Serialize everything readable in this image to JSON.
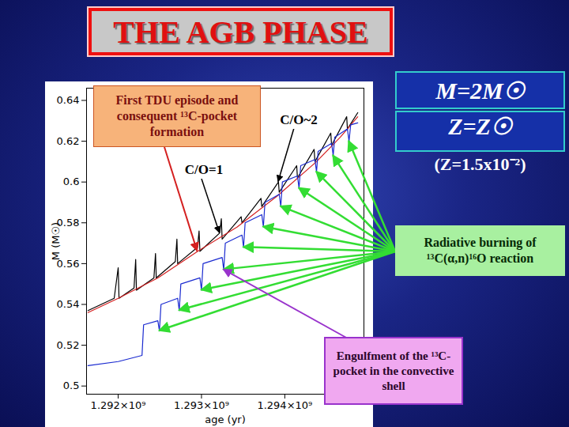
{
  "chart_data": {
    "type": "line",
    "title": "THE AGB PHASE",
    "xlabel": "age (yr)",
    "ylabel": "M (M☉)",
    "xlim": [
      1291620000,
      1294950000
    ],
    "ylim": [
      0.496,
      0.646
    ],
    "xticks": [
      {
        "value": 1292000000,
        "label": "1.292×10⁹"
      },
      {
        "value": 1293000000,
        "label": "1.293×10⁹"
      },
      {
        "value": 1294000000,
        "label": "1.294×10⁹"
      }
    ],
    "yticks": [
      0.5,
      0.52,
      0.54,
      0.56,
      0.58,
      0.6,
      0.62,
      0.64
    ],
    "grid": false,
    "annotations": [
      "First TDU episode and consequent ¹³C-pocket formation",
      "C/O=1",
      "C/O~2",
      "M=2M☉",
      "Z=Z☉",
      "(Z=1.5x10⁻²)",
      "Radiative burning of ¹³C(α,n)¹⁶O reaction",
      "Engulfment of the ¹³C-pocket in the convective shell"
    ],
    "series": [
      {
        "color": "#000000",
        "x": [
          1291638000,
          1291952000,
          1292000000,
          1292010000,
          1292190000,
          1292210000,
          1292219000,
          1292429000,
          1292448000,
          1292457000,
          1292686000,
          1292705000,
          1292714000,
          1292952000,
          1292971000,
          1292981000,
          1293219000,
          1293238000,
          1293248000,
          1293476000,
          1293486000,
          1293714000,
          1293724000,
          1293924000,
          1293933000,
          1294143000,
          1294152000,
          1294352000,
          1294362000,
          1294552000,
          1294562000,
          1294743000,
          1294752000,
          1294876000
        ],
        "values": [
          0.537,
          0.543,
          0.558,
          0.543,
          0.548,
          0.562,
          0.547,
          0.553,
          0.565,
          0.553,
          0.561,
          0.572,
          0.56,
          0.568,
          0.576,
          0.566,
          0.575,
          0.582,
          0.572,
          0.583,
          0.58,
          0.592,
          0.588,
          0.6,
          0.595,
          0.608,
          0.602,
          0.616,
          0.61,
          0.624,
          0.618,
          0.632,
          0.626,
          0.634
        ]
      },
      {
        "color": "#d42020",
        "x": [
          1291638000,
          1292000000,
          1292476000,
          1292952000,
          1293429000,
          1293905000,
          1294381000,
          1294667000,
          1294876000
        ],
        "values": [
          0.536,
          0.543,
          0.553,
          0.566,
          0.578,
          0.593,
          0.61,
          0.622,
          0.632
        ]
      },
      {
        "color": "#1a2ad0",
        "x": [
          1291638000,
          1292000000,
          1292286000,
          1292305000,
          1292476000,
          1292495000,
          1292514000,
          1292714000,
          1292733000,
          1292752000,
          1292981000,
          1293000000,
          1293019000,
          1293248000,
          1293267000,
          1293286000,
          1293486000,
          1293505000,
          1293524000,
          1293724000,
          1293743000,
          1293762000,
          1293933000,
          1293952000,
          1293971000,
          1294152000,
          1294171000,
          1294191000,
          1294362000,
          1294381000,
          1294400000,
          1294562000,
          1294581000,
          1294600000,
          1294752000,
          1294771000,
          1294791000,
          1294876000
        ],
        "values": [
          0.51,
          0.512,
          0.515,
          0.53,
          0.532,
          0.527,
          0.54,
          0.543,
          0.537,
          0.55,
          0.553,
          0.547,
          0.56,
          0.563,
          0.557,
          0.57,
          0.574,
          0.568,
          0.58,
          0.584,
          0.578,
          0.59,
          0.594,
          0.588,
          0.6,
          0.603,
          0.597,
          0.608,
          0.611,
          0.605,
          0.615,
          0.619,
          0.613,
          0.622,
          0.626,
          0.62,
          0.628,
          0.629
        ]
      }
    ]
  }
}
